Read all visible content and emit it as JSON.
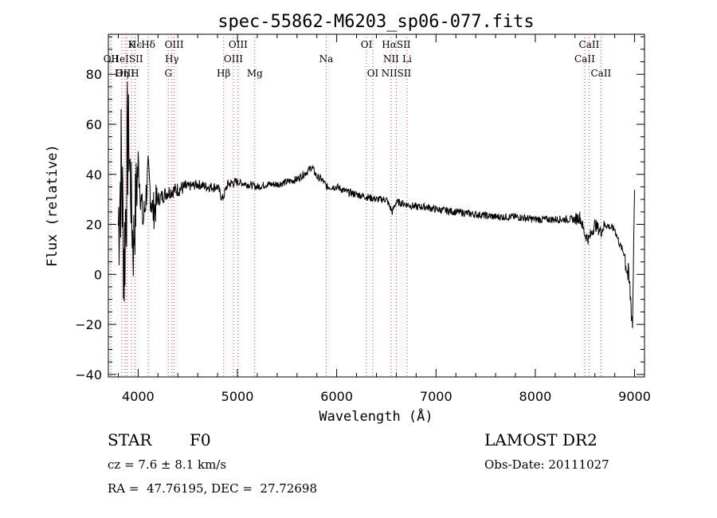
{
  "chart_data": {
    "type": "line",
    "title": "spec-55862-M6203_sp06-077.fits",
    "xlabel": "Wavelength (Å)",
    "ylabel": "Flux (relative)",
    "xlim": [
      3700,
      9100
    ],
    "ylim": [
      -41,
      96
    ],
    "x_ticks": [
      4000,
      5000,
      6000,
      7000,
      8000,
      9000
    ],
    "y_ticks": [
      -40,
      -20,
      0,
      20,
      40,
      60,
      80
    ],
    "grid": false,
    "series": [
      {
        "x": [
          3800,
          3830,
          3860,
          3900,
          3950,
          4000,
          4050,
          4100,
          4150,
          4200,
          4300,
          4400,
          4500,
          4600,
          4700,
          4800,
          4850,
          4900,
          5000,
          5100,
          5200,
          5300,
          5400,
          5500,
          5600,
          5700,
          5750,
          5800,
          5850,
          5900,
          6000,
          6100,
          6200,
          6300,
          6400,
          6500,
          6560,
          6600,
          6700,
          6800,
          6900,
          7000,
          7200,
          7400,
          7600,
          7800,
          8000,
          8200,
          8300,
          8400,
          8450,
          8500,
          8540,
          8600,
          8660,
          8700,
          8750,
          8800,
          8850,
          8900,
          8950,
          8980,
          9000
        ],
        "y": [
          20,
          45,
          5,
          60,
          10,
          45,
          20,
          40,
          25,
          30,
          33,
          34,
          35,
          36,
          35,
          35,
          30,
          36,
          37,
          36,
          35,
          36,
          36,
          37,
          38,
          41,
          43,
          39,
          38,
          35,
          35,
          33,
          32,
          31,
          30,
          30,
          25,
          29,
          28,
          27,
          27,
          26,
          25,
          24,
          23,
          23,
          22,
          22,
          22,
          22,
          23,
          16,
          14,
          20,
          17,
          20,
          19,
          18,
          12,
          8,
          -5,
          -20,
          38
        ]
      }
    ],
    "line_labels": [
      {
        "label": "Hϵ",
        "wavelength": 3970
      },
      {
        "label": "OII",
        "wavelength": 3727
      },
      {
        "label": "OIII",
        "wavelength": 3869
      },
      {
        "label": "K",
        "wavelength": 3934
      },
      {
        "label": "HeISII",
        "wavelength": 3889
      },
      {
        "label": "Hη",
        "wavelength": 3835
      },
      {
        "label": "H",
        "wavelength": 3968
      },
      {
        "label": "Hδ",
        "wavelength": 4102
      },
      {
        "label": "OIII",
        "wavelength": 4363
      },
      {
        "label": "Hγ",
        "wavelength": 4340
      },
      {
        "label": "G",
        "wavelength": 4304
      },
      {
        "label": "OIII",
        "wavelength": 5007
      },
      {
        "label": "OIII",
        "wavelength": 4959
      },
      {
        "label": "Hβ",
        "wavelength": 4861
      },
      {
        "label": "Mg",
        "wavelength": 5175
      },
      {
        "label": "Na",
        "wavelength": 5894
      },
      {
        "label": "OI",
        "wavelength": 6300
      },
      {
        "label": "OI",
        "wavelength": 6364
      },
      {
        "label": "HαSII",
        "wavelength": 6600
      },
      {
        "label": "NII",
        "wavelength": 6548
      },
      {
        "label": "NIISII",
        "wavelength": 6600
      },
      {
        "label": "Li",
        "wavelength": 6708
      },
      {
        "label": "CaII",
        "wavelength": 8542
      },
      {
        "label": "CaII",
        "wavelength": 8498
      },
      {
        "label": "CaII",
        "wavelength": 8662
      }
    ]
  },
  "footer": {
    "object_class": "STAR",
    "subclass": "F0",
    "survey": "LAMOST DR2",
    "cz": "cz = 7.6 ± 8.1 km/s",
    "obs_date": "Obs-Date: 20111027",
    "radec": "RA =  47.76195, DEC =  27.72698"
  }
}
